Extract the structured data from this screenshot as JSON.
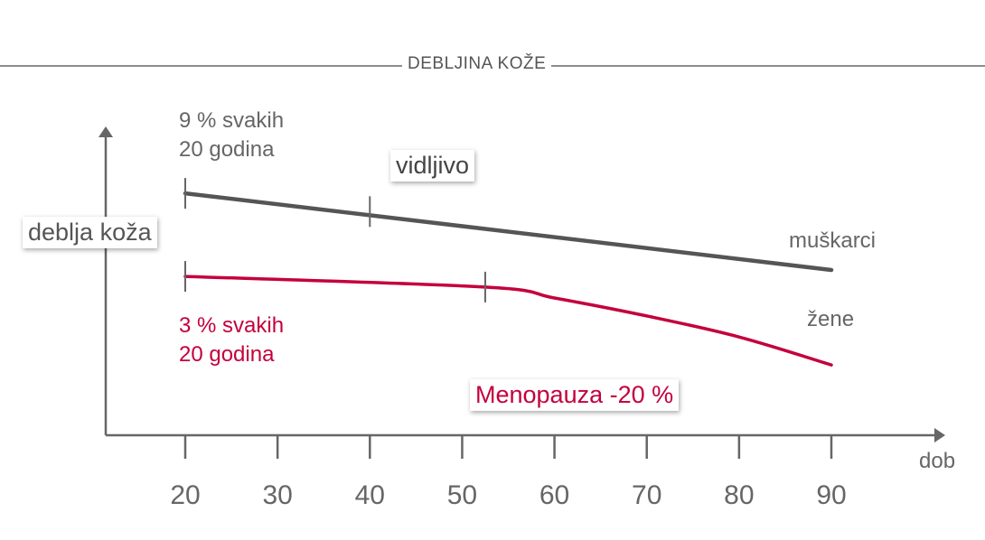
{
  "chart_data": {
    "type": "line",
    "title": "DEBLJINA KOŽE",
    "xlabel": "dob",
    "ylabel": "deblja koža",
    "xticks": [
      "20",
      "30",
      "40",
      "50",
      "60",
      "70",
      "80",
      "90"
    ],
    "xlim": [
      20,
      90
    ],
    "ylim": [
      0,
      100
    ],
    "grid": false,
    "series": [
      {
        "name": "muškarci",
        "color": "#555555",
        "x": [
          20,
          40,
          90
        ],
        "y": [
          79.5,
          73.5,
          54.3
        ],
        "markers_at": [
          20,
          40
        ]
      },
      {
        "name": "žene",
        "color": "#c4003c",
        "x": [
          20,
          52.5,
          60,
          70,
          80,
          90
        ],
        "y": [
          52.2,
          48.7,
          45.1,
          39.2,
          32.3,
          23.1
        ],
        "markers_at": [
          20,
          52.5
        ]
      }
    ],
    "annotations": {
      "men_rate_line1": "9 % svakih",
      "men_rate_line2": "20 godina",
      "visible": "vidljivo",
      "women_rate_line1": "3 % svakih",
      "women_rate_line2": "20 godina",
      "menopause": "Menopauza -20 %"
    }
  }
}
